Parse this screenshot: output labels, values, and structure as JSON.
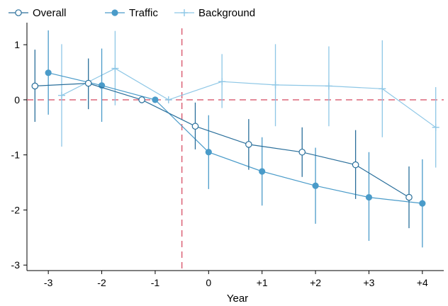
{
  "chart_data": {
    "type": "line",
    "title": "",
    "xlabel": "Year",
    "ylabel": "",
    "x_tick_labels": [
      "-3",
      "-2",
      "-1",
      "0",
      "+1",
      "+2",
      "+3",
      "+4"
    ],
    "y_tick_labels": [
      "-3",
      "-2",
      "-1",
      "0",
      "1"
    ],
    "y_ticks": [
      -3,
      -2,
      -1,
      0,
      1
    ],
    "ylim": [
      -3.1,
      1.4
    ],
    "xlim": [
      -3.4,
      4.4
    ],
    "grid": false,
    "legend": "top-left",
    "reference_lines": {
      "horizontal_y": 0,
      "vertical_x": -0.5,
      "color": "#d9596e",
      "style": "dashed"
    },
    "series": [
      {
        "name": "Overall",
        "color": "#2a6f9b",
        "marker": "hollow-circle",
        "x": [
          -3,
          -2,
          -1,
          0,
          1,
          2,
          3,
          4
        ],
        "offset_dir": -1,
        "y": [
          0.25,
          0.3,
          0.0,
          -0.48,
          -0.81,
          -0.95,
          -1.18,
          -1.77
        ],
        "ci_low": [
          -0.4,
          -0.17,
          0.0,
          -0.9,
          -1.27,
          -1.4,
          -1.8,
          -2.33
        ],
        "ci_high": [
          0.91,
          0.75,
          0.0,
          -0.05,
          -0.35,
          -0.5,
          -0.55,
          -1.21
        ]
      },
      {
        "name": "Traffic",
        "color": "#4a9bc9",
        "marker": "filled-circle",
        "x": [
          -3,
          -2,
          -1,
          0,
          1,
          2,
          3,
          4
        ],
        "offset_dir": 0,
        "y": [
          0.49,
          0.26,
          0.0,
          -0.95,
          -1.3,
          -1.56,
          -1.77,
          -1.88
        ],
        "ci_low": [
          -0.27,
          -0.4,
          0.0,
          -1.62,
          -1.92,
          -2.25,
          -2.56,
          -2.68
        ],
        "ci_high": [
          1.26,
          0.93,
          0.0,
          -0.28,
          -0.68,
          -0.87,
          -0.95,
          -1.08
        ]
      },
      {
        "name": "Background",
        "color": "#8ec7e6",
        "marker": "plus",
        "x": [
          -3,
          -2,
          -1,
          0,
          1,
          2,
          3,
          4
        ],
        "offset_dir": 1,
        "y": [
          0.08,
          0.57,
          0.0,
          0.33,
          0.27,
          0.25,
          0.2,
          -0.5
        ],
        "ci_low": [
          -0.85,
          -0.1,
          0.0,
          -0.15,
          -0.48,
          -0.48,
          -0.68,
          -1.23
        ],
        "ci_high": [
          1.01,
          1.25,
          0.0,
          0.83,
          1.01,
          0.97,
          1.08,
          0.23
        ]
      }
    ]
  }
}
